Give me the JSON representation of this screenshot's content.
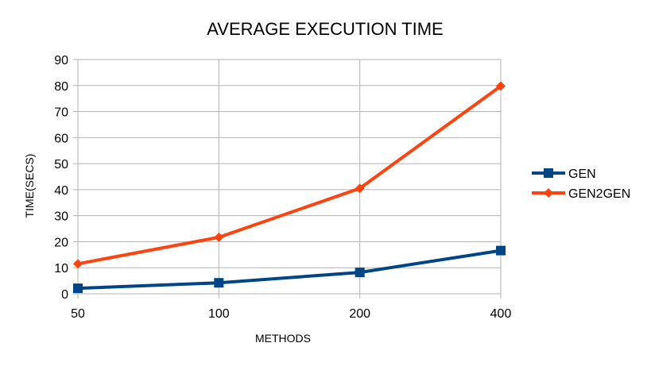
{
  "chart_data": {
    "type": "line",
    "title": "AVERAGE EXECUTION TIME",
    "xlabel": "METHODS",
    "ylabel": "TIME(SECS)",
    "categories": [
      "50",
      "100",
      "200",
      "400"
    ],
    "ylim": [
      0,
      90
    ],
    "yticks": [
      "0",
      "10",
      "20",
      "30",
      "40",
      "50",
      "60",
      "70",
      "80",
      "90"
    ],
    "grid": true,
    "legend_position": "right",
    "series": [
      {
        "name": "GEN",
        "values": [
          2.1,
          4.2,
          8.2,
          16.6
        ],
        "color": "#004586",
        "marker": "square"
      },
      {
        "name": "GEN2GEN",
        "values": [
          11.5,
          21.7,
          40.5,
          79.8
        ],
        "color": "#ff420e",
        "marker": "diamond"
      }
    ]
  }
}
